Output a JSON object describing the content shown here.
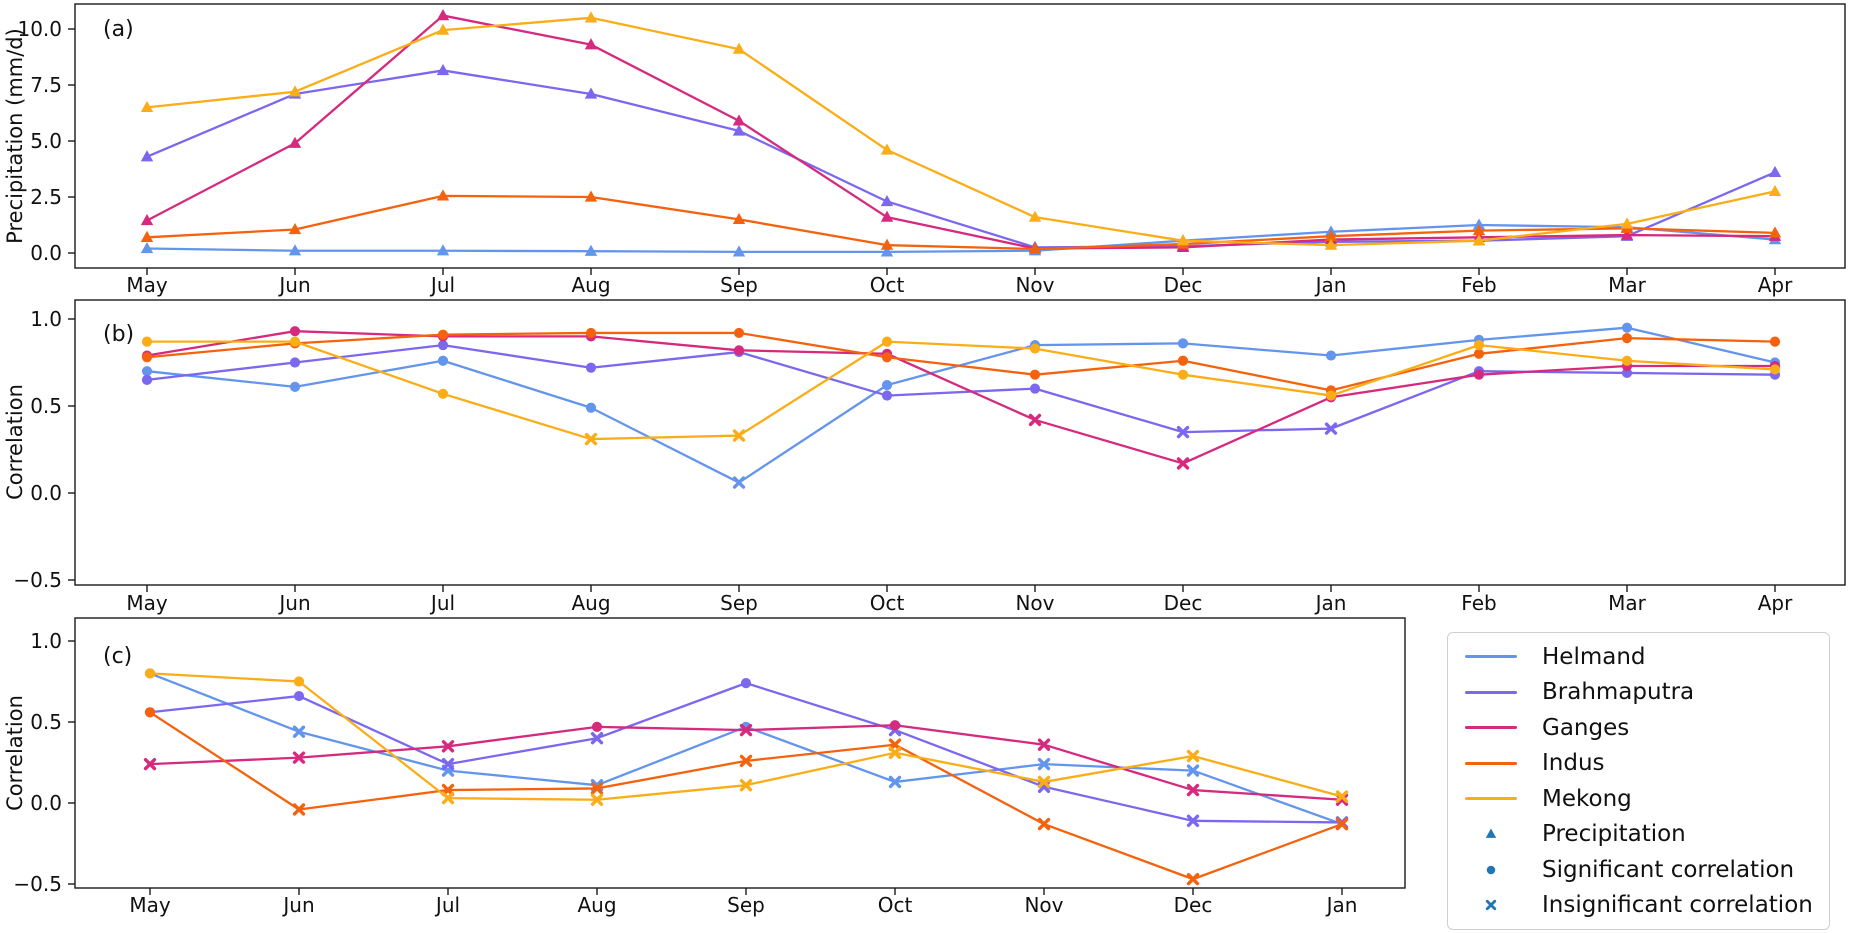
{
  "legend": {
    "river_items": [
      {
        "label": "Helmand",
        "color": "#6495ED"
      },
      {
        "label": "Brahmaputra",
        "color": "#7B68EE"
      },
      {
        "label": "Ganges",
        "color": "#D62A7E"
      },
      {
        "label": "Indus",
        "color": "#F4620E"
      },
      {
        "label": "Mekong",
        "color": "#FBAD18"
      }
    ],
    "marker_items": [
      {
        "label": "Precipitation",
        "marker": "triangle"
      },
      {
        "label": "Significant correlation",
        "marker": "circle"
      },
      {
        "label": "Insignificant correlation",
        "marker": "x"
      }
    ],
    "marker_color": "#1F77B4"
  },
  "chart_data": [
    {
      "panel": "a",
      "type": "line",
      "panel_label": "(a)",
      "ylabel": "Precipitation (mm/d)",
      "categories": [
        "May",
        "Jun",
        "Jul",
        "Aug",
        "Sep",
        "Oct",
        "Nov",
        "Dec",
        "Jan",
        "Feb",
        "Mar",
        "Apr"
      ],
      "yticks": [
        {
          "v": 0,
          "label": "0.0"
        },
        {
          "v": 2.5,
          "label": "2.5"
        },
        {
          "v": 5,
          "label": "5.0"
        },
        {
          "v": 7.5,
          "label": "7.5"
        },
        {
          "v": 10,
          "label": "10.0"
        }
      ],
      "ylim": [
        -0.67,
        11.1
      ],
      "grid": false,
      "series": [
        {
          "name": "Helmand",
          "color": "#6495ED",
          "marker": "triangle",
          "values": [
            0.2,
            0.1,
            0.1,
            0.08,
            0.05,
            0.05,
            0.1,
            0.55,
            0.95,
            1.25,
            1.15,
            0.6
          ]
        },
        {
          "name": "Brahmaputra",
          "color": "#7B68EE",
          "marker": "triangle",
          "values": [
            4.3,
            7.1,
            8.15,
            7.1,
            5.45,
            2.3,
            0.25,
            0.3,
            0.5,
            0.55,
            0.75,
            3.6
          ]
        },
        {
          "name": "Ganges",
          "color": "#D62A7E",
          "marker": "triangle",
          "values": [
            1.45,
            4.9,
            10.6,
            9.3,
            5.9,
            1.6,
            0.2,
            0.25,
            0.6,
            0.7,
            0.8,
            0.75
          ]
        },
        {
          "name": "Indus",
          "color": "#F4620E",
          "marker": "triangle",
          "values": [
            0.7,
            1.05,
            2.55,
            2.5,
            1.5,
            0.35,
            0.18,
            0.4,
            0.75,
            1.0,
            1.1,
            0.9
          ]
        },
        {
          "name": "Mekong",
          "color": "#FBAD18",
          "marker": "triangle",
          "values": [
            6.5,
            7.2,
            9.95,
            10.5,
            9.1,
            4.6,
            1.6,
            0.55,
            0.35,
            0.55,
            1.3,
            2.75
          ]
        }
      ]
    },
    {
      "panel": "b",
      "type": "line",
      "panel_label": "(b)",
      "ylabel": "Correlation",
      "categories": [
        "May",
        "Jun",
        "Jul",
        "Aug",
        "Sep",
        "Oct",
        "Nov",
        "Dec",
        "Jan",
        "Feb",
        "Mar",
        "Apr"
      ],
      "yticks": [
        {
          "v": -0.5,
          "label": "−0.5"
        },
        {
          "v": 0,
          "label": "0.0"
        },
        {
          "v": 0.5,
          "label": "0.5"
        },
        {
          "v": 1,
          "label": "1.0"
        }
      ],
      "ylim": [
        -0.53,
        1.11
      ],
      "grid": false,
      "series": [
        {
          "name": "Helmand",
          "color": "#6495ED",
          "values": [
            0.7,
            0.61,
            0.76,
            0.49,
            0.06,
            0.62,
            0.85,
            0.86,
            0.79,
            0.88,
            0.95,
            0.75
          ],
          "markers": [
            "circle",
            "circle",
            "circle",
            "circle",
            "x",
            "circle",
            "circle",
            "circle",
            "circle",
            "circle",
            "circle",
            "circle"
          ]
        },
        {
          "name": "Brahmaputra",
          "color": "#7B68EE",
          "values": [
            0.65,
            0.75,
            0.85,
            0.72,
            0.81,
            0.56,
            0.6,
            0.35,
            0.37,
            0.7,
            0.69,
            0.68
          ],
          "markers": [
            "circle",
            "circle",
            "circle",
            "circle",
            "circle",
            "circle",
            "circle",
            "x",
            "x",
            "circle",
            "circle",
            "circle"
          ]
        },
        {
          "name": "Ganges",
          "color": "#D62A7E",
          "values": [
            0.79,
            0.93,
            0.9,
            0.9,
            0.82,
            0.8,
            0.42,
            0.17,
            0.55,
            0.68,
            0.73,
            0.73
          ],
          "markers": [
            "circle",
            "circle",
            "circle",
            "circle",
            "circle",
            "circle",
            "x",
            "x",
            "circle",
            "circle",
            "circle",
            "circle"
          ]
        },
        {
          "name": "Indus",
          "color": "#F4620E",
          "values": [
            0.78,
            0.86,
            0.91,
            0.92,
            0.92,
            0.78,
            0.68,
            0.76,
            0.59,
            0.8,
            0.89,
            0.87
          ],
          "markers": [
            "circle",
            "circle",
            "circle",
            "circle",
            "circle",
            "circle",
            "circle",
            "circle",
            "circle",
            "circle",
            "circle",
            "circle"
          ]
        },
        {
          "name": "Mekong",
          "color": "#FBAD18",
          "values": [
            0.87,
            0.87,
            0.57,
            0.31,
            0.33,
            0.87,
            0.83,
            0.68,
            0.56,
            0.85,
            0.76,
            0.71
          ],
          "markers": [
            "circle",
            "circle",
            "circle",
            "x",
            "x",
            "circle",
            "circle",
            "circle",
            "circle",
            "circle",
            "circle",
            "circle"
          ]
        }
      ]
    },
    {
      "panel": "c",
      "type": "line",
      "panel_label": "(c)",
      "ylabel": "Correlation",
      "categories": [
        "May",
        "Jun",
        "Jul",
        "Aug",
        "Sep",
        "Oct",
        "Nov",
        "Dec",
        "Jan"
      ],
      "yticks": [
        {
          "v": -0.5,
          "label": "−0.5"
        },
        {
          "v": 0,
          "label": "0.0"
        },
        {
          "v": 0.5,
          "label": "0.5"
        },
        {
          "v": 1,
          "label": "1.0"
        }
      ],
      "ylim": [
        -0.53,
        1.15
      ],
      "grid": false,
      "series": [
        {
          "name": "Helmand",
          "color": "#6495ED",
          "values": [
            0.8,
            0.44,
            0.2,
            0.11,
            0.47,
            0.13,
            0.24,
            0.2,
            -0.13
          ],
          "markers": [
            "circle",
            "x",
            "x",
            "x",
            "circle",
            "x",
            "x",
            "x",
            "x"
          ]
        },
        {
          "name": "Brahmaputra",
          "color": "#7B68EE",
          "values": [
            0.56,
            0.66,
            0.24,
            0.4,
            0.74,
            0.45,
            0.1,
            -0.11,
            -0.12
          ],
          "markers": [
            "circle",
            "circle",
            "x",
            "x",
            "circle",
            "x",
            "x",
            "x",
            "x"
          ]
        },
        {
          "name": "Ganges",
          "color": "#D62A7E",
          "values": [
            0.24,
            0.28,
            0.35,
            0.47,
            0.45,
            0.48,
            0.36,
            0.08,
            0.02
          ],
          "markers": [
            "x",
            "x",
            "x",
            "circle",
            "x",
            "circle",
            "x",
            "x",
            "x"
          ]
        },
        {
          "name": "Indus",
          "color": "#F4620E",
          "values": [
            0.56,
            -0.04,
            0.08,
            0.09,
            0.26,
            0.36,
            -0.13,
            -0.47,
            -0.13
          ],
          "markers": [
            "circle",
            "x",
            "x",
            "x",
            "x",
            "x",
            "x",
            "x",
            "x"
          ]
        },
        {
          "name": "Mekong",
          "color": "#FBAD18",
          "values": [
            0.8,
            0.75,
            0.03,
            0.02,
            0.11,
            0.31,
            0.13,
            0.29,
            0.04
          ],
          "markers": [
            "circle",
            "circle",
            "x",
            "x",
            "x",
            "x",
            "x",
            "x",
            "x"
          ]
        }
      ]
    }
  ]
}
